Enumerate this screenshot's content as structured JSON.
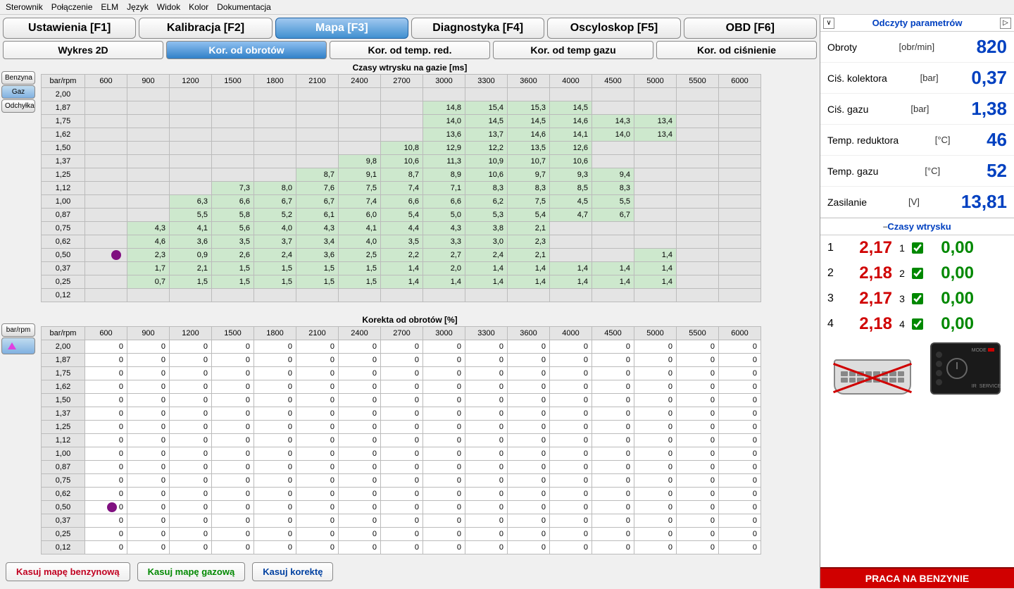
{
  "menu": [
    "Sterownik",
    "Połączenie",
    "ELM",
    "Język",
    "Widok",
    "Kolor",
    "Dokumentacja"
  ],
  "mainTabs": [
    {
      "label": "Ustawienia [F1]",
      "active": false
    },
    {
      "label": "Kalibracja [F2]",
      "active": false
    },
    {
      "label": "Mapa [F3]",
      "active": true
    },
    {
      "label": "Diagnostyka [F4]",
      "active": false
    },
    {
      "label": "Oscyloskop [F5]",
      "active": false
    },
    {
      "label": "OBD [F6]",
      "active": false
    }
  ],
  "subTabs": [
    {
      "label": "Wykres 2D",
      "active": false
    },
    {
      "label": "Kor. od obrotów",
      "active": true
    },
    {
      "label": "Kor. od temp. red.",
      "active": false
    },
    {
      "label": "Kor. od temp gazu",
      "active": false
    },
    {
      "label": "Kor. od ciśnienie",
      "active": false
    }
  ],
  "sideTabs1": [
    {
      "label": "Benzyna",
      "active": false
    },
    {
      "label": "Gaz",
      "active": true
    },
    {
      "label": "Odchyłka",
      "active": false
    }
  ],
  "table1": {
    "title": "Czasy wtrysku na gazie [ms]",
    "corner": "bar/rpm",
    "cols": [
      "600",
      "900",
      "1200",
      "1500",
      "1800",
      "2100",
      "2400",
      "2700",
      "3000",
      "3300",
      "3600",
      "4000",
      "4500",
      "5000",
      "5500",
      "6000"
    ],
    "rows": [
      {
        "h": "2,00",
        "c": [
          "",
          "",
          "",
          "",
          "",
          "",
          "",
          "",
          "",
          "",
          "",
          "",
          "",
          "",
          "",
          ""
        ]
      },
      {
        "h": "1,87",
        "c": [
          "",
          "",
          "",
          "",
          "",
          "",
          "",
          "",
          "14,8",
          "15,4",
          "15,3",
          "14,5",
          "",
          "",
          "",
          ""
        ]
      },
      {
        "h": "1,75",
        "c": [
          "",
          "",
          "",
          "",
          "",
          "",
          "",
          "",
          "14,0",
          "14,5",
          "14,5",
          "14,6",
          "14,3",
          "13,4",
          "",
          ""
        ]
      },
      {
        "h": "1,62",
        "c": [
          "",
          "",
          "",
          "",
          "",
          "",
          "",
          "",
          "13,6",
          "13,7",
          "14,6",
          "14,1",
          "14,0",
          "13,4",
          "",
          ""
        ]
      },
      {
        "h": "1,50",
        "c": [
          "",
          "",
          "",
          "",
          "",
          "",
          "",
          "10,8",
          "12,9",
          "12,2",
          "13,5",
          "12,6",
          "",
          "",
          "",
          ""
        ]
      },
      {
        "h": "1,37",
        "c": [
          "",
          "",
          "",
          "",
          "",
          "",
          "9,8",
          "10,6",
          "11,3",
          "10,9",
          "10,7",
          "10,6",
          "",
          "",
          "",
          ""
        ]
      },
      {
        "h": "1,25",
        "c": [
          "",
          "",
          "",
          "",
          "",
          "8,7",
          "9,1",
          "8,7",
          "8,9",
          "10,6",
          "9,7",
          "9,3",
          "9,4",
          "",
          "",
          ""
        ]
      },
      {
        "h": "1,12",
        "c": [
          "",
          "",
          "",
          "7,3",
          "8,0",
          "7,6",
          "7,5",
          "7,4",
          "7,1",
          "8,3",
          "8,3",
          "8,5",
          "8,3",
          "",
          "",
          ""
        ]
      },
      {
        "h": "1,00",
        "c": [
          "",
          "",
          "6,3",
          "6,6",
          "6,7",
          "6,7",
          "7,4",
          "6,6",
          "6,6",
          "6,2",
          "7,5",
          "4,5",
          "5,5",
          "",
          "",
          ""
        ]
      },
      {
        "h": "0,87",
        "c": [
          "",
          "",
          "5,5",
          "5,8",
          "5,2",
          "6,1",
          "6,0",
          "5,4",
          "5,0",
          "5,3",
          "5,4",
          "4,7",
          "6,7",
          "",
          "",
          ""
        ]
      },
      {
        "h": "0,75",
        "c": [
          "",
          "4,3",
          "4,1",
          "5,6",
          "4,0",
          "4,3",
          "4,1",
          "4,4",
          "4,3",
          "3,8",
          "2,1",
          "",
          "",
          "",
          "",
          ""
        ]
      },
      {
        "h": "0,62",
        "c": [
          "",
          "4,6",
          "3,6",
          "3,5",
          "3,7",
          "3,4",
          "4,0",
          "3,5",
          "3,3",
          "3,0",
          "2,3",
          "",
          "",
          "",
          "",
          ""
        ]
      },
      {
        "h": "0,50",
        "c": [
          "",
          "2,3",
          "0,9",
          "2,6",
          "2,4",
          "3,6",
          "2,5",
          "2,2",
          "2,7",
          "2,4",
          "2,1",
          "",
          "",
          "1,4",
          "",
          ""
        ],
        "marker": true
      },
      {
        "h": "0,37",
        "c": [
          "",
          "1,7",
          "2,1",
          "1,5",
          "1,5",
          "1,5",
          "1,5",
          "1,4",
          "2,0",
          "1,4",
          "1,4",
          "1,4",
          "1,4",
          "1,4",
          "",
          ""
        ]
      },
      {
        "h": "0,25",
        "c": [
          "",
          "0,7",
          "1,5",
          "1,5",
          "1,5",
          "1,5",
          "1,5",
          "1,4",
          "1,4",
          "1,4",
          "1,4",
          "1,4",
          "1,4",
          "1,4",
          "",
          ""
        ]
      },
      {
        "h": "0,12",
        "c": [
          "",
          "",
          "",
          "",
          "",
          "",
          "",
          "",
          "",
          "",
          "",
          "",
          "",
          "",
          "",
          ""
        ]
      }
    ]
  },
  "sideTabs2": [
    {
      "label": "bar/rpm",
      "active": false
    },
    {
      "icon": "triangle",
      "active": true
    }
  ],
  "table2": {
    "title": "Korekta od obrotów [%]",
    "corner": "bar/rpm",
    "cols": [
      "600",
      "900",
      "1200",
      "1500",
      "1800",
      "2100",
      "2400",
      "2700",
      "3000",
      "3300",
      "3600",
      "4000",
      "4500",
      "5000",
      "5500",
      "6000"
    ],
    "rows": [
      {
        "h": "2,00"
      },
      {
        "h": "1,87"
      },
      {
        "h": "1,75"
      },
      {
        "h": "1,62"
      },
      {
        "h": "1,50"
      },
      {
        "h": "1,37"
      },
      {
        "h": "1,25"
      },
      {
        "h": "1,12"
      },
      {
        "h": "1,00"
      },
      {
        "h": "0,87"
      },
      {
        "h": "0,75"
      },
      {
        "h": "0,62"
      },
      {
        "h": "0,50",
        "marker": true
      },
      {
        "h": "0,37"
      },
      {
        "h": "0,25"
      },
      {
        "h": "0,12"
      }
    ],
    "fill": "0"
  },
  "actions": [
    {
      "label": "Kasuj mapę benzynową",
      "style": "red"
    },
    {
      "label": "Kasuj mapę gazową",
      "style": "green"
    },
    {
      "label": "Kasuj korektę",
      "style": "blue"
    }
  ],
  "paramHeader": "Odczyty parametrów",
  "params": [
    {
      "label": "Obroty",
      "unit": "[obr/min]",
      "value": "820"
    },
    {
      "label": "Ciś. kolektora",
      "unit": "[bar]",
      "value": "0,37"
    },
    {
      "label": "Ciś. gazu",
      "unit": "[bar]",
      "value": "1,38"
    },
    {
      "label": "Temp. reduktora",
      "unit": "[°C]",
      "value": "46"
    },
    {
      "label": "Temp. gazu",
      "unit": "[°C]",
      "value": "52"
    },
    {
      "label": "Zasilanie",
      "unit": "[V]",
      "value": "13,81"
    }
  ],
  "injHeader": "Czasy wtrysku",
  "injectors": [
    {
      "n": "1",
      "t1": "2,17",
      "n2": "1",
      "t2": "0,00"
    },
    {
      "n": "2",
      "t1": "2,18",
      "n2": "2",
      "t2": "0,00"
    },
    {
      "n": "3",
      "t1": "2,17",
      "n2": "3",
      "t2": "0,00"
    },
    {
      "n": "4",
      "t1": "2,18",
      "n2": "4",
      "t2": "0,00"
    }
  ],
  "status": "PRACA NA BENZYNIE",
  "ecuLabels": {
    "mode": "MODE",
    "ir": "IR",
    "service": "SERVICE"
  }
}
